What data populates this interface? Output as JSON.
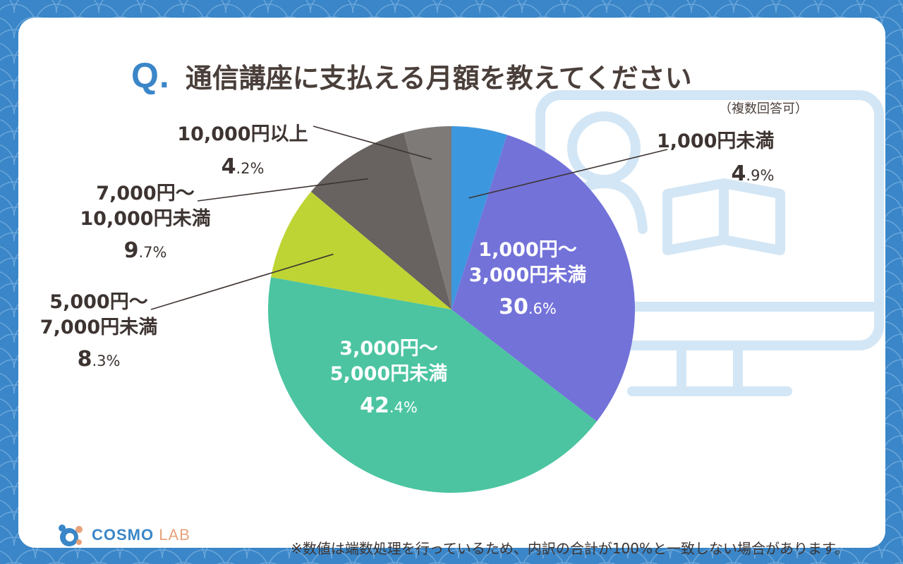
{
  "title": {
    "q_mark": "Q.",
    "text": "通信講座に支払える月額を教えてください"
  },
  "note": "（複数回答可）",
  "footnote": "※数値は端数処理を行っているため、内訳の合計が100%と一致しない場合があります。",
  "logo": {
    "main": "COSMO",
    "sub": "LAB"
  },
  "colors": {
    "background": "#3a86c8",
    "text": "#3d3431",
    "slice_1": "#3d97de",
    "slice_2": "#7372d9",
    "slice_3": "#4cc4a1",
    "slice_4": "#bed434",
    "slice_5": "#686260",
    "slice_6": "#7e7a78"
  },
  "chart_data": {
    "type": "pie",
    "title": "通信講座に支払える月額を教えてください",
    "unit": "%",
    "slices": [
      {
        "name_lines": [
          "1,000円未満"
        ],
        "value": 4.9,
        "int": "4",
        "dec": ".9%"
      },
      {
        "name_lines": [
          "1,000円〜",
          "3,000円未満"
        ],
        "value": 30.6,
        "int": "30",
        "dec": ".6%"
      },
      {
        "name_lines": [
          "3,000円〜",
          "5,000円未満"
        ],
        "value": 42.4,
        "int": "42",
        "dec": ".4%"
      },
      {
        "name_lines": [
          "5,000円〜",
          "7,000円未満"
        ],
        "value": 8.3,
        "int": "8",
        "dec": ".3%"
      },
      {
        "name_lines": [
          "7,000円〜",
          "10,000円未満"
        ],
        "value": 9.7,
        "int": "9",
        "dec": ".7%"
      },
      {
        "name_lines": [
          "10,000円以上"
        ],
        "value": 4.2,
        "int": "4",
        "dec": ".2%"
      }
    ]
  }
}
